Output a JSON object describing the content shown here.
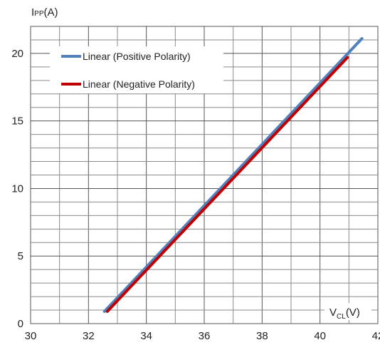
{
  "chart_data": {
    "type": "line",
    "title": "",
    "xlabel": {
      "main": "V",
      "sub": "CL",
      "unit": "(V)"
    },
    "ylabel": {
      "main": "I",
      "sub": "PP",
      "unit": "(A)"
    },
    "xlim": [
      30,
      42
    ],
    "ylim": [
      0,
      22
    ],
    "xticks": [
      30,
      32,
      34,
      36,
      38,
      40,
      42
    ],
    "yticks": [
      0,
      5,
      10,
      15,
      20
    ],
    "grid": true,
    "legend_position": "top-left",
    "series": [
      {
        "name": "Linear (Positive Polarity)",
        "color": "#4f81bd",
        "x": [
          32.55,
          41.45
        ],
        "y": [
          0.9,
          21.1
        ]
      },
      {
        "name": "Linear (Negative Polarity)",
        "color": "#c00000",
        "x": [
          32.65,
          40.95
        ],
        "y": [
          0.9,
          19.7
        ]
      }
    ]
  }
}
